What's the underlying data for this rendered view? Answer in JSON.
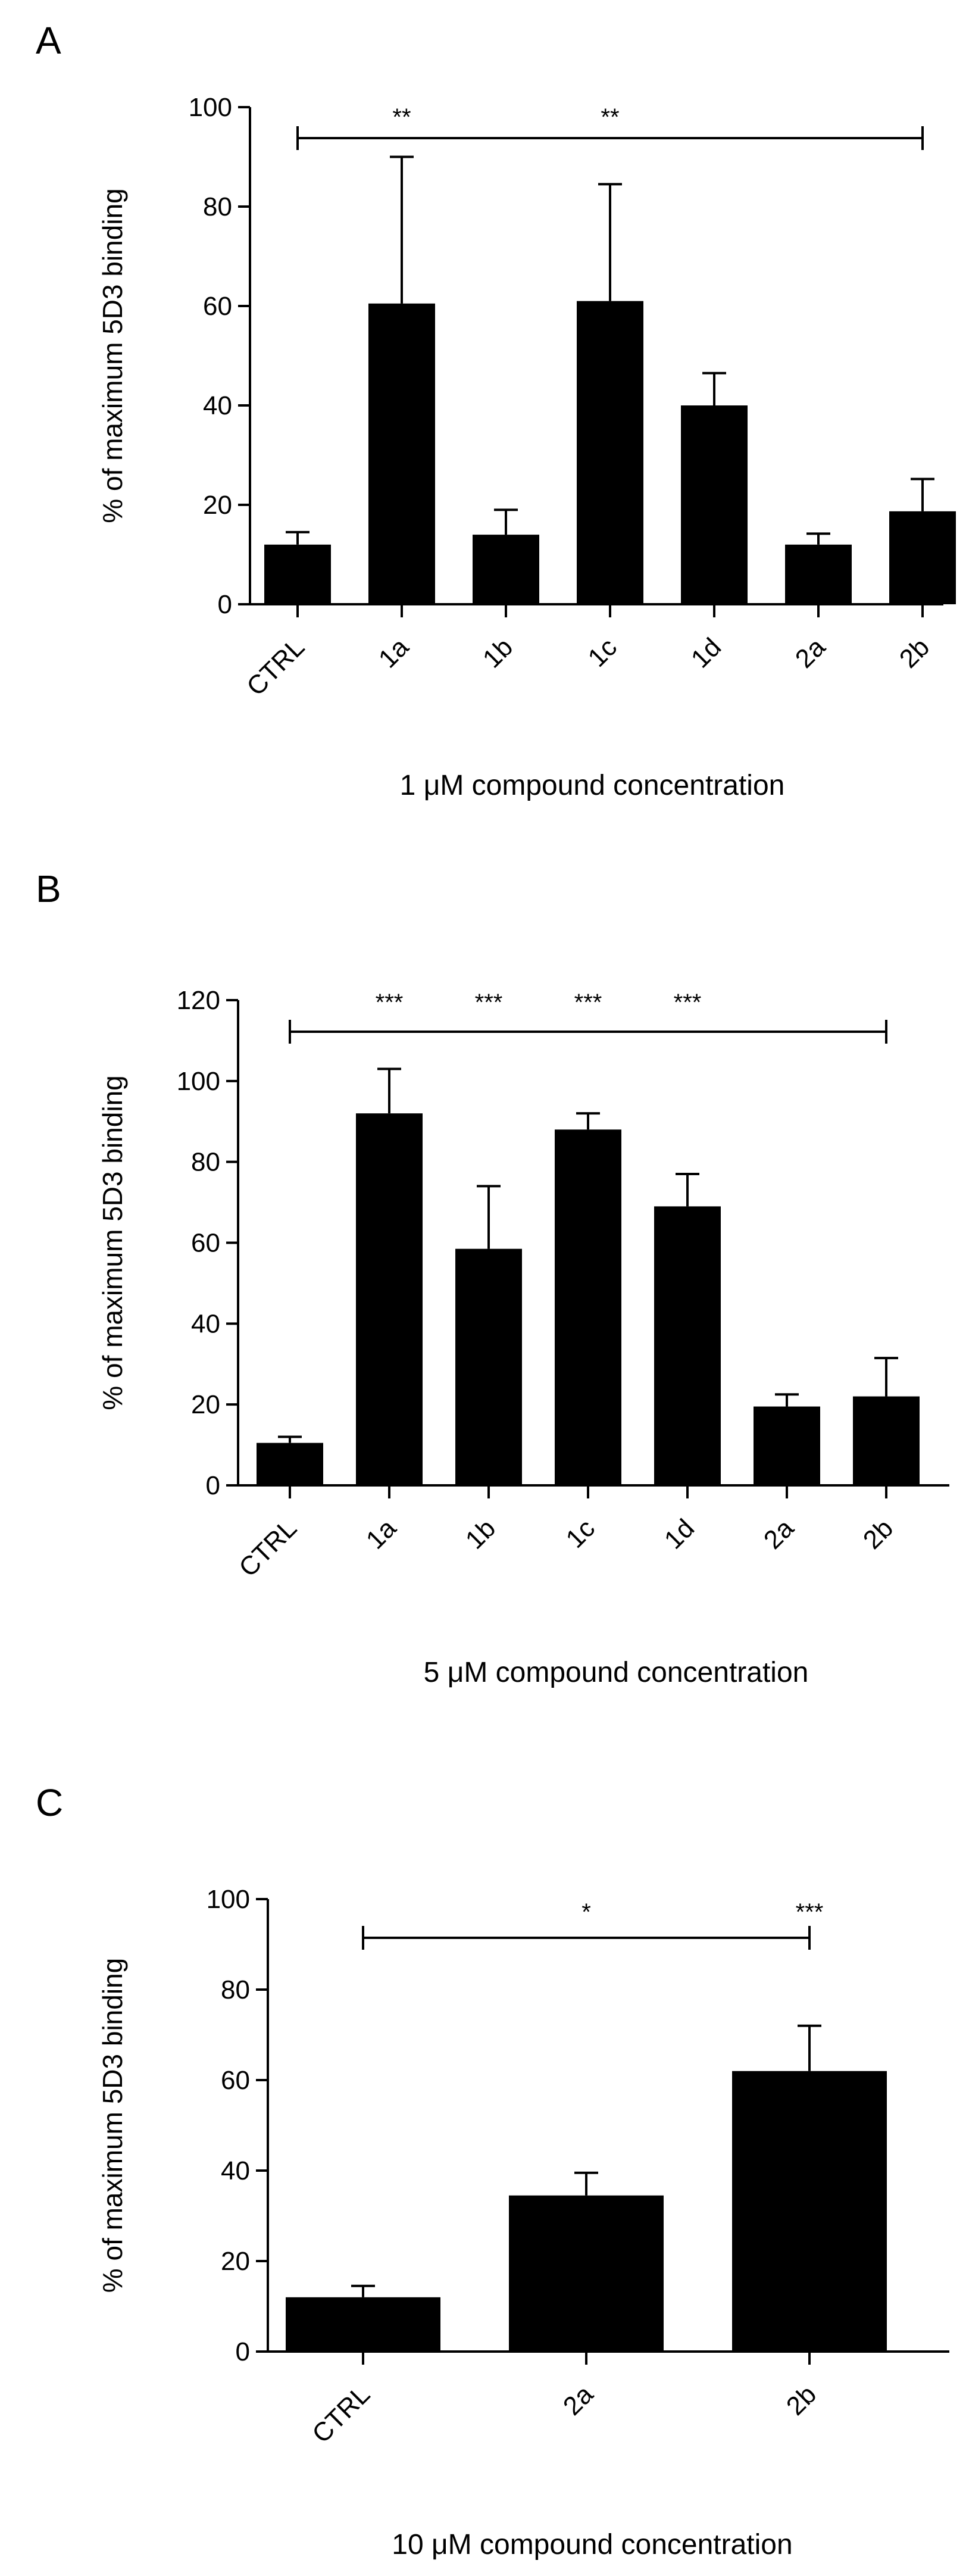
{
  "chart_data": [
    {
      "type": "bar",
      "panel_label": "A",
      "categories": [
        "CTRL",
        "1a",
        "1b",
        "1c",
        "1d",
        "2a",
        "2b"
      ],
      "values": [
        12,
        60.5,
        14,
        61,
        40,
        12,
        18.7
      ],
      "errors": [
        2.5,
        29.5,
        5,
        23.5,
        6.5,
        2.2,
        6.5
      ],
      "ylabel": "% of maximum 5D3 binding",
      "xlabel": "1 μM compound concentration",
      "ylim": [
        0,
        100
      ],
      "yticks": [
        0,
        20,
        40,
        60,
        80,
        100
      ],
      "significance": {
        "bracket": [
          "CTRL",
          "2b"
        ],
        "annotations": [
          {
            "category": "1a",
            "label": "**"
          },
          {
            "category": "1c",
            "label": "**"
          }
        ]
      }
    },
    {
      "type": "bar",
      "panel_label": "B",
      "categories": [
        "CTRL",
        "1a",
        "1b",
        "1c",
        "1d",
        "2a",
        "2b"
      ],
      "values": [
        10.5,
        92,
        58.5,
        88,
        69,
        19.5,
        22
      ],
      "errors": [
        1.5,
        11,
        15.5,
        4,
        8,
        3,
        9.5
      ],
      "ylabel": "% of maximum 5D3 binding",
      "xlabel": "5 μM compound concentration",
      "ylim": [
        0,
        120
      ],
      "yticks": [
        0,
        20,
        40,
        60,
        80,
        100,
        120
      ],
      "significance": {
        "bracket": [
          "CTRL",
          "2b"
        ],
        "annotations": [
          {
            "category": "1a",
            "label": "***"
          },
          {
            "category": "1b",
            "label": "***"
          },
          {
            "category": "1c",
            "label": "***"
          },
          {
            "category": "1d",
            "label": "***"
          }
        ]
      }
    },
    {
      "type": "bar",
      "panel_label": "C",
      "categories": [
        "CTRL",
        "2a",
        "2b"
      ],
      "values": [
        12,
        34.5,
        62
      ],
      "errors": [
        2.5,
        5,
        10
      ],
      "ylabel": "% of maximum 5D3 binding",
      "xlabel": "10 μM compound concentration",
      "ylim": [
        0,
        100
      ],
      "yticks": [
        0,
        20,
        40,
        60,
        80,
        100
      ],
      "significance": {
        "bracket": [
          "CTRL",
          "2b"
        ],
        "annotations": [
          {
            "category": "2a",
            "label": "*"
          },
          {
            "category": "2b",
            "label": "***"
          }
        ]
      }
    }
  ]
}
